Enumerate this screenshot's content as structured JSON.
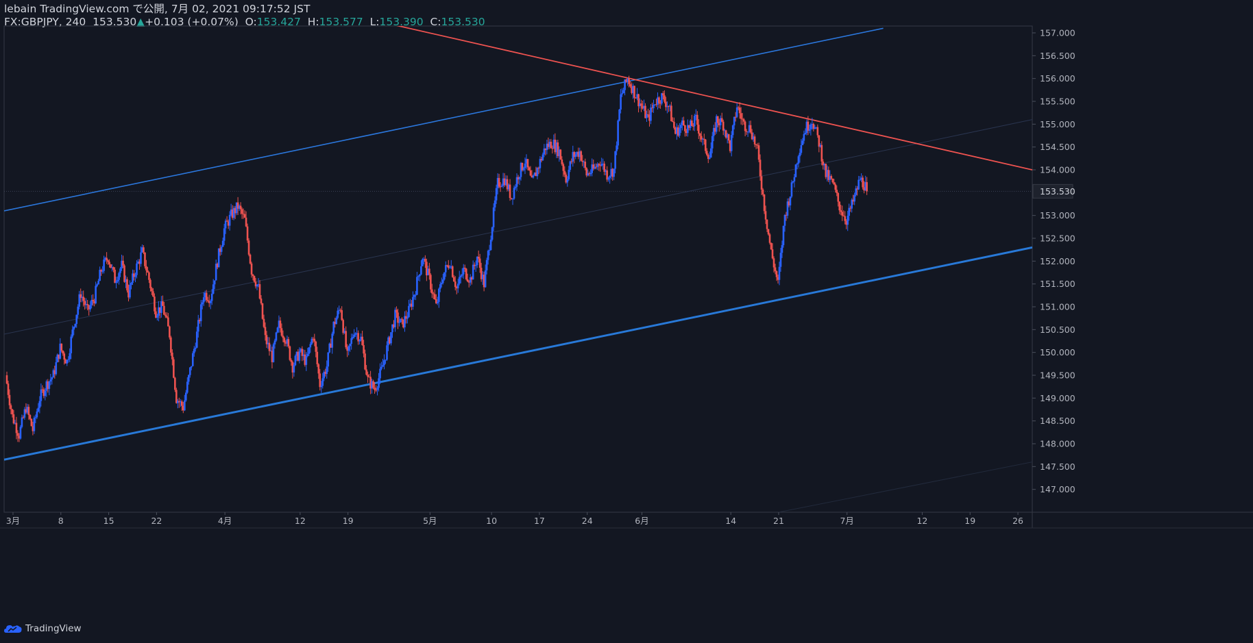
{
  "header": {
    "published": "lebain TradingView.com で公開, 7月 02, 2021 09:17:52 JST",
    "symbol": "FX:GBPJPY, 240",
    "last": "153.530",
    "change_arrow": "▲",
    "change": "+0.103 (+0.07%)",
    "o_label": "O:",
    "o_value": "153.427",
    "h_label": "H:",
    "h_value": "153.577",
    "l_label": "L:",
    "l_value": "153.390",
    "c_label": "C:",
    "c_value": "153.530"
  },
  "footer": {
    "brand": "TradingView"
  },
  "chart_data": {
    "type": "candlestick",
    "symbol": "FX:GBPJPY",
    "timeframe": "240",
    "ylim": [
      146.5,
      157.15
    ],
    "y_ticks": [
      "157.000",
      "156.500",
      "156.000",
      "155.500",
      "155.000",
      "154.500",
      "154.000",
      "153.000",
      "152.500",
      "152.000",
      "151.500",
      "151.000",
      "150.500",
      "150.000",
      "149.500",
      "149.000",
      "148.500",
      "148.000",
      "147.500",
      "147.000"
    ],
    "x_ticks": [
      {
        "label": "3月",
        "day": 0
      },
      {
        "label": "8",
        "day": 7
      },
      {
        "label": "15",
        "day": 14
      },
      {
        "label": "22",
        "day": 21
      },
      {
        "label": "4月",
        "day": 31
      },
      {
        "label": "12",
        "day": 42
      },
      {
        "label": "19",
        "day": 49
      },
      {
        "label": "5月",
        "day": 61
      },
      {
        "label": "10",
        "day": 70
      },
      {
        "label": "17",
        "day": 77
      },
      {
        "label": "24",
        "day": 84
      },
      {
        "label": "6月",
        "day": 92
      },
      {
        "label": "14",
        "day": 105
      },
      {
        "label": "21",
        "day": 112
      },
      {
        "label": "7月",
        "day": 122
      },
      {
        "label": "12",
        "day": 133
      },
      {
        "label": "19",
        "day": 140
      },
      {
        "label": "26",
        "day": 147
      }
    ],
    "x_range_days": [
      -1.3,
      149.1
    ],
    "last_price": {
      "value": 153.53,
      "label": "153.530",
      "color": "#26a69a"
    },
    "up_color": "#2962ff",
    "down_color": "#ef5350",
    "path_points": [
      [
        -1,
        149.5
      ],
      [
        0,
        148.6
      ],
      [
        1,
        148.2
      ],
      [
        2,
        148.8
      ],
      [
        3,
        148.3
      ],
      [
        4,
        149.0
      ],
      [
        5,
        149.3
      ],
      [
        6,
        149.5
      ],
      [
        7,
        150.1
      ],
      [
        8,
        149.8
      ],
      [
        9,
        150.6
      ],
      [
        10,
        151.3
      ],
      [
        11,
        150.9
      ],
      [
        12,
        151.2
      ],
      [
        13,
        151.8
      ],
      [
        14,
        152.1
      ],
      [
        15,
        151.6
      ],
      [
        16,
        151.9
      ],
      [
        17,
        151.3
      ],
      [
        18,
        151.8
      ],
      [
        19,
        152.2
      ],
      [
        20,
        151.6
      ],
      [
        21,
        150.9
      ],
      [
        22,
        151.0
      ],
      [
        23,
        150.4
      ],
      [
        24,
        149.0
      ],
      [
        25,
        148.8
      ],
      [
        26,
        149.6
      ],
      [
        27,
        150.4
      ],
      [
        28,
        151.3
      ],
      [
        29,
        151.2
      ],
      [
        30,
        152.0
      ],
      [
        31,
        152.7
      ],
      [
        32,
        153.0
      ],
      [
        33,
        153.2
      ],
      [
        34,
        152.9
      ],
      [
        35,
        151.8
      ],
      [
        36,
        151.4
      ],
      [
        37,
        150.3
      ],
      [
        38,
        149.9
      ],
      [
        39,
        150.6
      ],
      [
        40,
        150.3
      ],
      [
        41,
        149.7
      ],
      [
        42,
        150.0
      ],
      [
        43,
        149.8
      ],
      [
        44,
        150.4
      ],
      [
        45,
        149.3
      ],
      [
        46,
        149.7
      ],
      [
        47,
        150.6
      ],
      [
        48,
        151.0
      ],
      [
        49,
        149.9
      ],
      [
        50,
        150.5
      ],
      [
        51,
        150.3
      ],
      [
        52,
        149.4
      ],
      [
        53,
        149.2
      ],
      [
        54,
        149.6
      ],
      [
        55,
        150.2
      ],
      [
        56,
        150.8
      ],
      [
        57,
        150.6
      ],
      [
        58,
        150.9
      ],
      [
        59,
        151.4
      ],
      [
        60,
        152.1
      ],
      [
        61,
        151.6
      ],
      [
        62,
        151.0
      ],
      [
        63,
        151.7
      ],
      [
        64,
        152.0
      ],
      [
        65,
        151.4
      ],
      [
        66,
        151.8
      ],
      [
        67,
        151.6
      ],
      [
        68,
        152.1
      ],
      [
        69,
        151.5
      ],
      [
        70,
        152.6
      ],
      [
        71,
        153.7
      ],
      [
        72,
        153.8
      ],
      [
        73,
        153.4
      ],
      [
        74,
        153.9
      ],
      [
        75,
        154.2
      ],
      [
        76,
        153.7
      ],
      [
        77,
        154.1
      ],
      [
        78,
        154.5
      ],
      [
        79,
        154.6
      ],
      [
        80,
        154.4
      ],
      [
        81,
        153.8
      ],
      [
        82,
        154.3
      ],
      [
        83,
        154.4
      ],
      [
        84,
        153.9
      ],
      [
        85,
        154.0
      ],
      [
        86,
        154.2
      ],
      [
        87,
        153.9
      ],
      [
        88,
        154.0
      ],
      [
        89,
        155.6
      ],
      [
        90,
        156.0
      ],
      [
        91,
        155.7
      ],
      [
        92,
        155.4
      ],
      [
        93,
        155.1
      ],
      [
        94,
        155.5
      ],
      [
        95,
        155.6
      ],
      [
        96,
        155.4
      ],
      [
        97,
        154.8
      ],
      [
        98,
        155.0
      ],
      [
        99,
        154.9
      ],
      [
        100,
        155.1
      ],
      [
        101,
        154.6
      ],
      [
        102,
        154.3
      ],
      [
        103,
        155.1
      ],
      [
        104,
        155.0
      ],
      [
        105,
        154.5
      ],
      [
        106,
        155.4
      ],
      [
        107,
        155.0
      ],
      [
        108,
        154.9
      ],
      [
        109,
        154.4
      ],
      [
        110,
        153.2
      ],
      [
        111,
        152.2
      ],
      [
        112,
        151.5
      ],
      [
        113,
        153.0
      ],
      [
        114,
        153.6
      ],
      [
        115,
        154.4
      ],
      [
        116,
        154.9
      ],
      [
        117,
        155.1
      ],
      [
        118,
        154.6
      ],
      [
        119,
        153.9
      ],
      [
        120,
        153.7
      ],
      [
        121,
        153.2
      ],
      [
        122,
        152.9
      ],
      [
        123,
        153.3
      ],
      [
        124,
        153.8
      ],
      [
        125,
        153.6
      ]
    ],
    "trendlines": [
      {
        "role": "channel-upper",
        "color": "#2b77dd",
        "width": 1.6,
        "p1": [
          -1.3,
          153.1
        ],
        "p2": [
          127.3,
          157.1
        ]
      },
      {
        "role": "channel-mid",
        "color": "#2a3550",
        "width": 1,
        "p1": [
          -1.3,
          150.4
        ],
        "p2": [
          149.1,
          155.1
        ]
      },
      {
        "role": "channel-lower",
        "color": "#2879d8",
        "width": 3,
        "p1": [
          -1.3,
          147.65
        ],
        "p2": [
          149.1,
          152.3
        ]
      },
      {
        "role": "channel-bottom-faint",
        "color": "#222a3c",
        "width": 1,
        "p1": [
          112,
          146.5
        ],
        "p2": [
          149.1,
          147.6
        ]
      },
      {
        "role": "descending-resistance",
        "color": "#ef5350",
        "width": 1.8,
        "p1": [
          55,
          157.2
        ],
        "p2": [
          149.1,
          154.0
        ]
      }
    ],
    "grid": false
  }
}
